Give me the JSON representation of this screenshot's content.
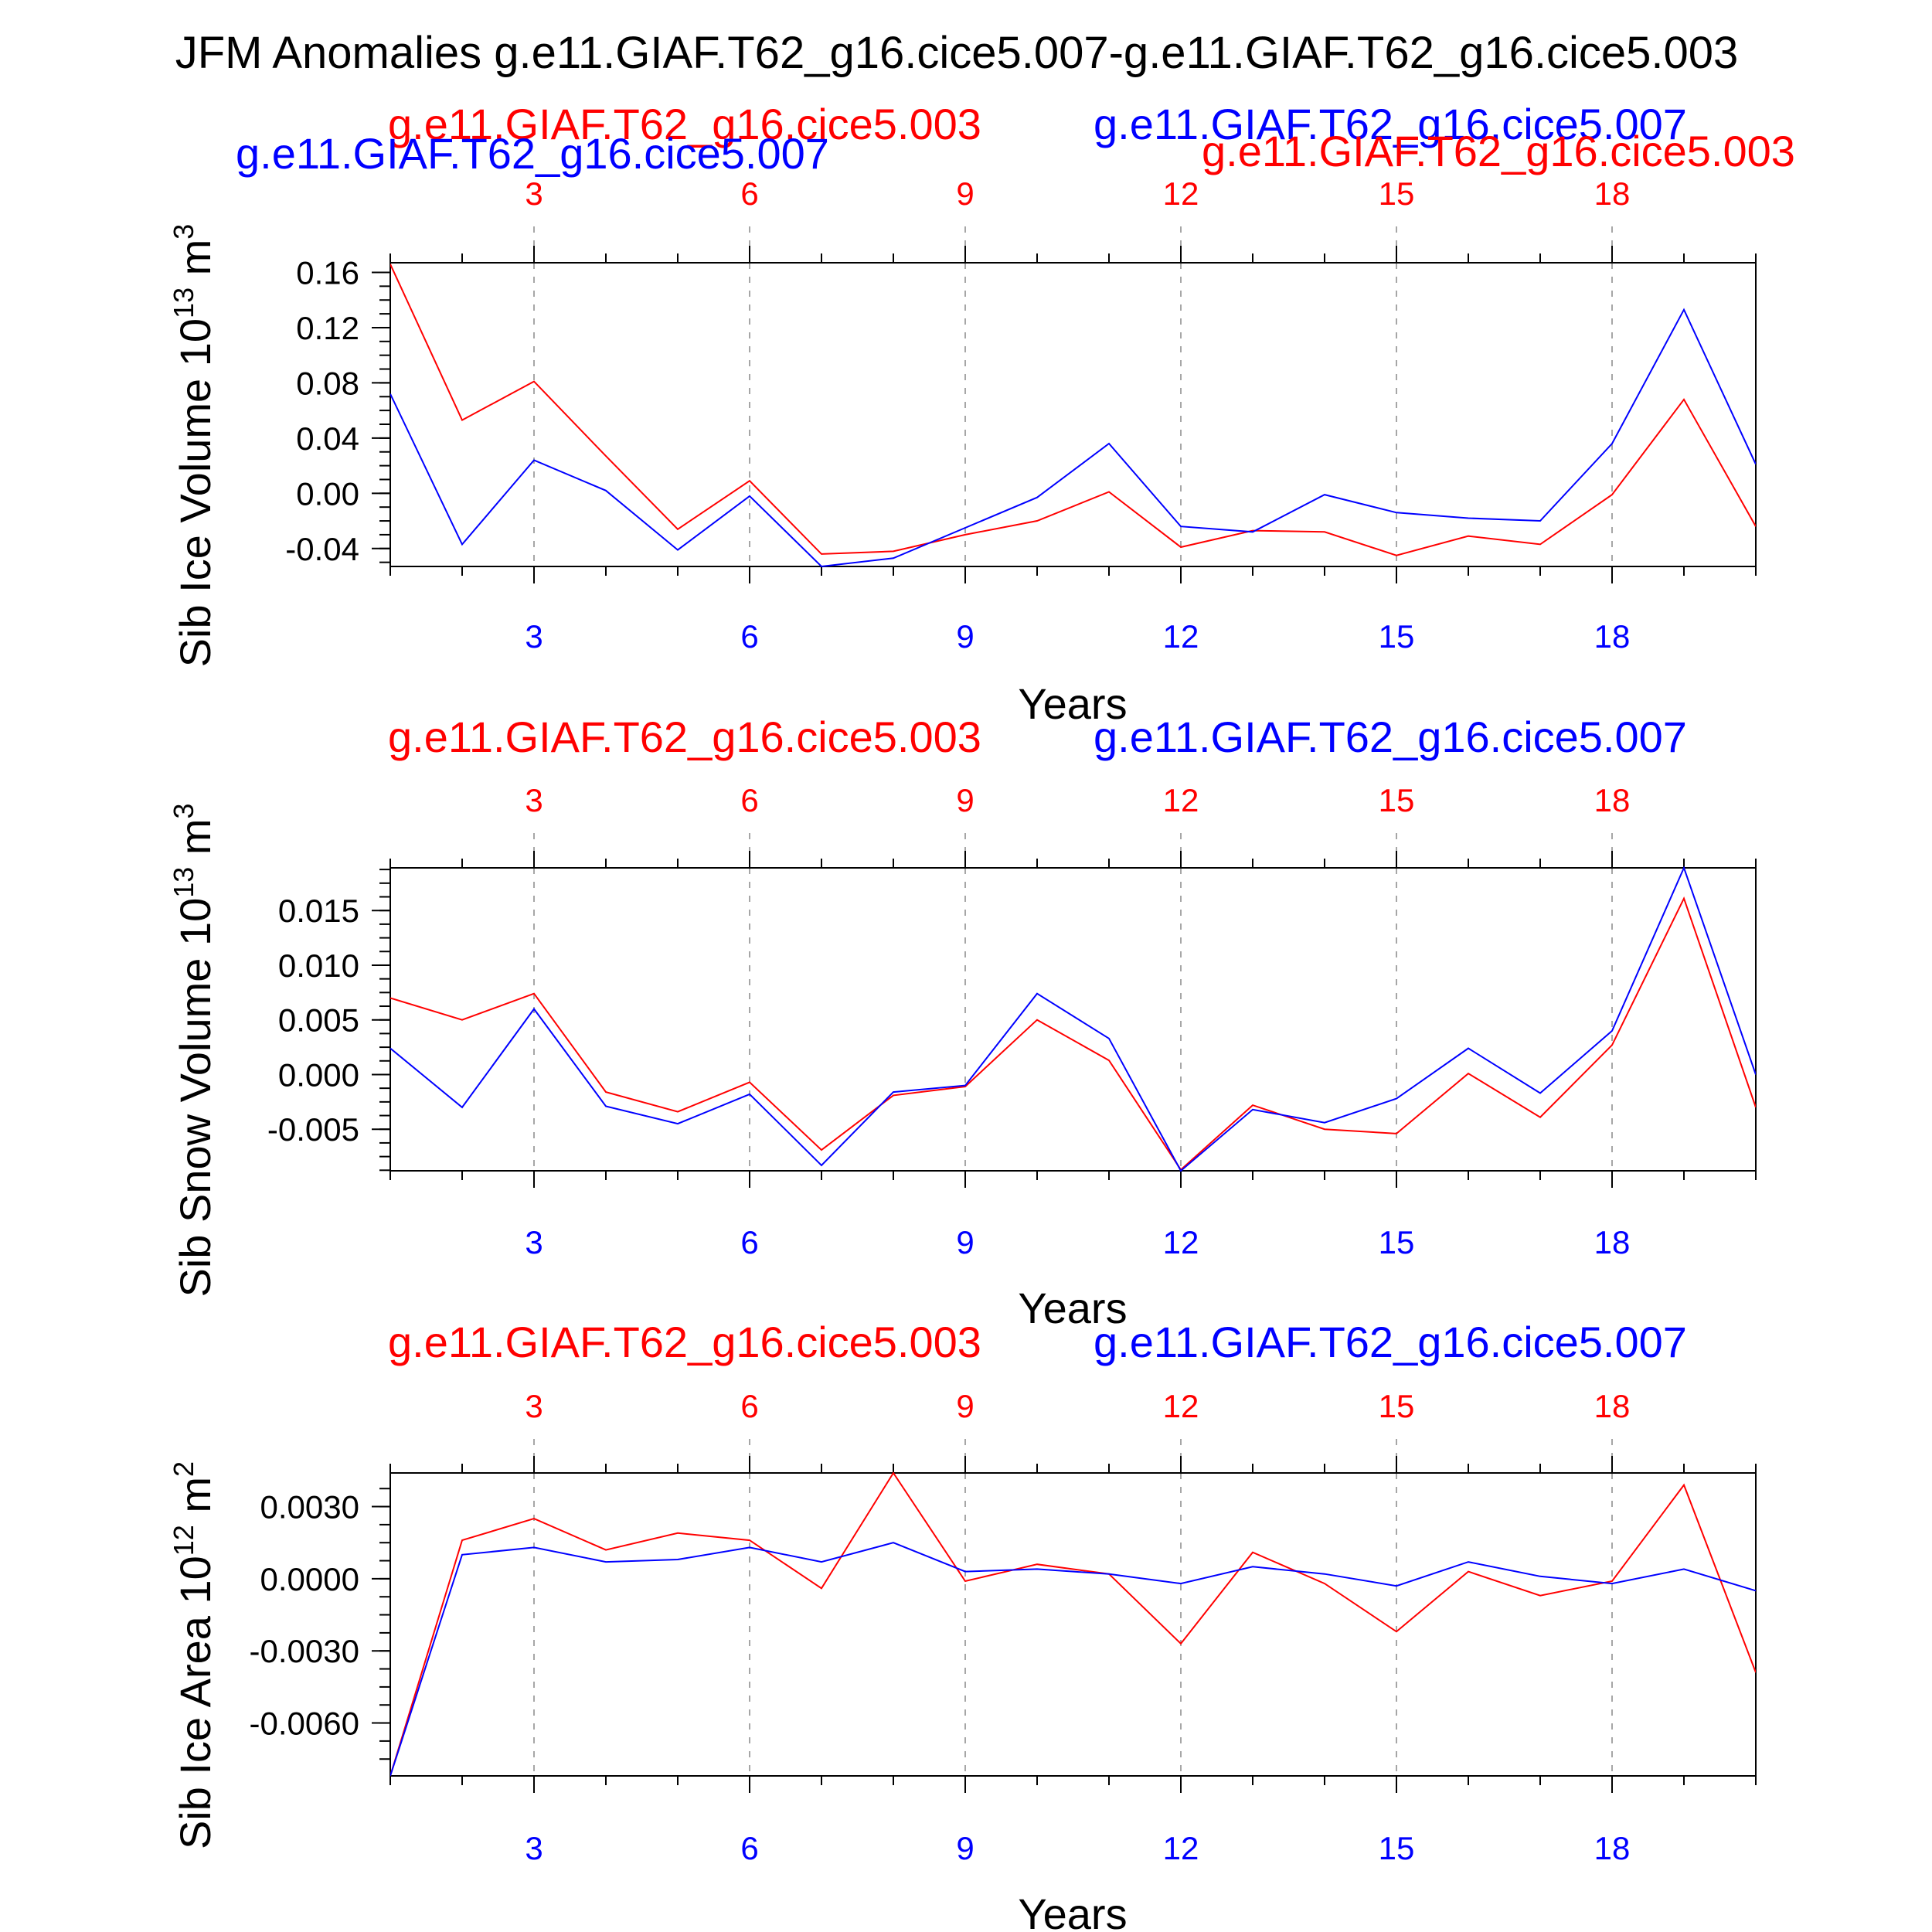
{
  "title": "JFM Anomalies g.e11.GIAF.T62_g16.cice5.007-g.e11.GIAF.T62_g16.cice5.003",
  "colors": {
    "case_a": "#ff0000",
    "case_b": "#0000ff",
    "axis": "#000000",
    "grid": "#888888"
  },
  "chart_data": [
    {
      "type": "line",
      "ylabel": "Sib Ice Volume 10",
      "ylabel_exp": "13",
      "ylabel_unit": " m",
      "ylabel_unit_exp": "3",
      "xlabel": "Years",
      "xlim": [
        1,
        20
      ],
      "ylim": [
        -0.053,
        0.167
      ],
      "yticks": [
        -0.04,
        0.0,
        0.04,
        0.08,
        0.12,
        0.16
      ],
      "ytick_labels": [
        "-0.04",
        "0.00",
        "0.04",
        "0.08",
        "0.12",
        "0.16"
      ],
      "xticks": [
        3,
        6,
        9,
        12,
        15,
        18
      ],
      "xtick_labels": [
        "3",
        "6",
        "9",
        "12",
        "15",
        "18"
      ],
      "top_legend": [
        "g.e11.GIAF.T62_g16.cice5.003",
        "g.e11.GIAF.T62_g16.cice5.007"
      ],
      "extra_legend": [
        "g.e11.GIAF.T62_g16.cice5.007",
        "g.e11.GIAF.T62_g16.cice5.003"
      ],
      "x": [
        1,
        2,
        3,
        4,
        5,
        6,
        7,
        8,
        9,
        10,
        11,
        12,
        13,
        14,
        15,
        16,
        17,
        18,
        19,
        20
      ],
      "series": [
        {
          "name": "g.e11.GIAF.T62_g16.cice5.003",
          "color": "#ff0000",
          "values": [
            0.166,
            0.053,
            0.081,
            0.027,
            -0.026,
            0.009,
            -0.044,
            -0.042,
            -0.03,
            -0.02,
            0.001,
            -0.039,
            -0.027,
            -0.028,
            -0.045,
            -0.031,
            -0.037,
            -0.001,
            0.068,
            -0.024
          ]
        },
        {
          "name": "g.e11.GIAF.T62_g16.cice5.007",
          "color": "#0000ff",
          "values": [
            0.072,
            -0.037,
            0.024,
            0.002,
            -0.041,
            -0.002,
            -0.053,
            -0.047,
            -0.025,
            -0.003,
            0.036,
            -0.024,
            -0.028,
            -0.001,
            -0.014,
            -0.018,
            -0.02,
            0.036,
            0.133,
            0.021
          ]
        }
      ]
    },
    {
      "type": "line",
      "ylabel": "Sib Snow Volume 10",
      "ylabel_exp": "13",
      "ylabel_unit": " m",
      "ylabel_unit_exp": "3",
      "xlabel": "Years",
      "xlim": [
        1,
        20
      ],
      "ylim": [
        -0.0088,
        0.0189
      ],
      "yticks": [
        -0.005,
        0.0,
        0.005,
        0.01,
        0.015
      ],
      "ytick_labels": [
        "-0.005",
        "0.000",
        "0.005",
        "0.010",
        "0.015"
      ],
      "xticks": [
        3,
        6,
        9,
        12,
        15,
        18
      ],
      "xtick_labels": [
        "3",
        "6",
        "9",
        "12",
        "15",
        "18"
      ],
      "top_legend": [
        "g.e11.GIAF.T62_g16.cice5.003",
        "g.e11.GIAF.T62_g16.cice5.007"
      ],
      "x": [
        1,
        2,
        3,
        4,
        5,
        6,
        7,
        8,
        9,
        10,
        11,
        12,
        13,
        14,
        15,
        16,
        17,
        18,
        19,
        20
      ],
      "series": [
        {
          "name": "g.e11.GIAF.T62_g16.cice5.003",
          "color": "#ff0000",
          "values": [
            0.007,
            0.005,
            0.0074,
            -0.0016,
            -0.0034,
            -0.0007,
            -0.0069,
            -0.0019,
            -0.0011,
            0.005,
            0.0013,
            -0.0087,
            -0.0028,
            -0.005,
            -0.0054,
            0.0001,
            -0.0039,
            0.0027,
            0.0161,
            -0.003
          ]
        },
        {
          "name": "g.e11.GIAF.T62_g16.cice5.007",
          "color": "#0000ff",
          "values": [
            0.0024,
            -0.003,
            0.006,
            -0.0029,
            -0.0045,
            -0.0018,
            -0.0083,
            -0.0016,
            -0.001,
            0.0074,
            0.0033,
            -0.0088,
            -0.0032,
            -0.0044,
            -0.0022,
            0.0024,
            -0.0017,
            0.004,
            0.0189,
            0.0
          ]
        }
      ]
    },
    {
      "type": "line",
      "ylabel": "Sib Ice Area 10",
      "ylabel_exp": "12",
      "ylabel_unit": " m",
      "ylabel_unit_exp": "2",
      "xlabel": "Years",
      "xlim": [
        1,
        20
      ],
      "ylim": [
        -0.0082,
        0.0044
      ],
      "yticks": [
        -0.006,
        -0.003,
        0.0,
        0.003
      ],
      "ytick_labels": [
        "-0.0060",
        "-0.0030",
        "0.0000",
        "0.0030"
      ],
      "xticks": [
        3,
        6,
        9,
        12,
        15,
        18
      ],
      "xtick_labels": [
        "3",
        "6",
        "9",
        "12",
        "15",
        "18"
      ],
      "top_legend": [
        "g.e11.GIAF.T62_g16.cice5.003",
        "g.e11.GIAF.T62_g16.cice5.007"
      ],
      "x": [
        1,
        2,
        3,
        4,
        5,
        6,
        7,
        8,
        9,
        10,
        11,
        12,
        13,
        14,
        15,
        16,
        17,
        18,
        19,
        20
      ],
      "series": [
        {
          "name": "g.e11.GIAF.T62_g16.cice5.003",
          "color": "#ff0000",
          "values": [
            -0.0082,
            0.0016,
            0.0025,
            0.0012,
            0.0019,
            0.0016,
            -0.0004,
            0.0044,
            -0.0001,
            0.0006,
            0.0002,
            -0.0027,
            0.0011,
            -0.0002,
            -0.0022,
            0.0003,
            -0.0007,
            -0.0001,
            0.0039,
            -0.0039
          ]
        },
        {
          "name": "g.e11.GIAF.T62_g16.cice5.007",
          "color": "#0000ff",
          "values": [
            -0.0082,
            0.001,
            0.0013,
            0.0007,
            0.0008,
            0.0013,
            0.0007,
            0.0015,
            0.0003,
            0.0004,
            0.0002,
            -0.0002,
            0.0005,
            0.0002,
            -0.0003,
            0.0007,
            0.0001,
            -0.0002,
            0.0004,
            -0.0005
          ]
        }
      ]
    }
  ]
}
